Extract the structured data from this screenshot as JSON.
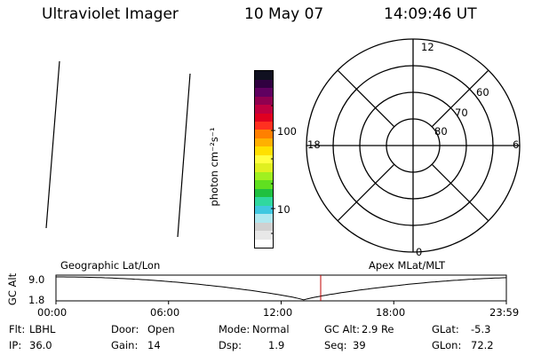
{
  "header": {
    "instrument": "Ultraviolet Imager",
    "date": "10 May 07",
    "time": "14:09:46 UT"
  },
  "colorbar": {
    "colors": [
      "#ffffff",
      "#e8e8e8",
      "#d0d0d0",
      "#b0e8f0",
      "#40c8e0",
      "#30d8a0",
      "#20c040",
      "#60e020",
      "#a0f020",
      "#e0f020",
      "#ffff40",
      "#ffe000",
      "#ffb000",
      "#ff8000",
      "#ff3020",
      "#e00020",
      "#c00040",
      "#900050",
      "#600060",
      "#300040",
      "#101020"
    ],
    "tick_labels": [
      "100",
      "10"
    ],
    "unit_label": "photon cm⁻²s⁻¹"
  },
  "polar_plot": {
    "mlt_labels": [
      "12",
      "18",
      "6",
      "0"
    ],
    "lat_labels": [
      "60",
      "70",
      "80"
    ]
  },
  "orbit_plot": {
    "left_label": "Geographic Lat/Lon",
    "right_label": "Apex MLat/MLT",
    "y_axis_label": "GC Alt",
    "y_tick_labels": [
      "9.0",
      "1.8"
    ],
    "x_tick_labels": [
      "00:00",
      "06:00",
      "12:00",
      "18:00",
      "23:59"
    ],
    "marker_color": "#c00000"
  },
  "footer": {
    "row1": [
      {
        "label": "Flt:",
        "value": "LBHL"
      },
      {
        "label": "Door:",
        "value": "Open"
      },
      {
        "label": "Mode:",
        "value": "Normal"
      },
      {
        "label": "GC Alt:",
        "value": "2.9 Re"
      },
      {
        "label": "GLat:",
        "value": "-5.3"
      }
    ],
    "row2": [
      {
        "label": "IP:",
        "value": "36.0"
      },
      {
        "label": "Gain:",
        "value": "14"
      },
      {
        "label": "Dsp:",
        "value": "1.9"
      },
      {
        "label": "Seq:",
        "value": "39"
      },
      {
        "label": "GLon:",
        "value": "72.2"
      }
    ]
  }
}
